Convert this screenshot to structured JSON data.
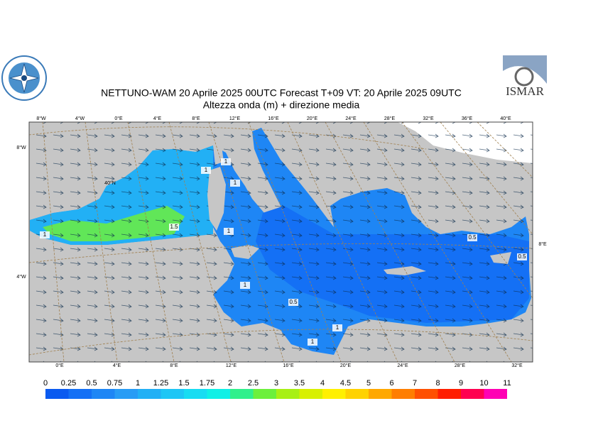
{
  "header": {
    "title": "NETTUNO-WAM  20   Aprile  2025 00UTC Forecast T+09 VT: 20   Aprile  2025 09UTC",
    "subtitle": "Altezza onda (m) + direzione media",
    "logo_right": "ISMAR"
  },
  "map": {
    "top_labels": [
      "8°W",
      "4°W",
      "0°E",
      "4°E",
      "8°E",
      "12°E",
      "16°E",
      "20°E",
      "24°E",
      "28°E",
      "32°E",
      "36°E",
      "40°E"
    ],
    "bottom_labels": [
      "0°E",
      "4°E",
      "8°E",
      "12°E",
      "16°E",
      "20°E",
      "24°E",
      "28°E",
      "32°E"
    ],
    "left_labels": [
      "8°W",
      "4°W"
    ],
    "inner_labels": [
      "40°N"
    ],
    "right_labels": [
      "8°E"
    ],
    "contour_labels": [
      "1",
      "1",
      "1",
      "1",
      "1.5",
      "1",
      "1",
      "0.5",
      "1",
      "1",
      "0.5",
      "0.5"
    ]
  },
  "colorbar": {
    "ticks": [
      0,
      0.25,
      0.5,
      0.75,
      1,
      1.25,
      1.5,
      1.75,
      2,
      2.5,
      3,
      3.5,
      4,
      4.5,
      5,
      6,
      7,
      8,
      9,
      10,
      11
    ],
    "colors": [
      "#0a5af0",
      "#1470f5",
      "#1e86f5",
      "#289cf5",
      "#22b0f5",
      "#1ec6f5",
      "#18dcf2",
      "#10f0e6",
      "#30f08c",
      "#6cf03c",
      "#a8f014",
      "#d8f000",
      "#fff000",
      "#ffd200",
      "#ffa800",
      "#ff7e00",
      "#ff5000",
      "#ff1e00",
      "#ff0050",
      "#ff00b4"
    ]
  }
}
